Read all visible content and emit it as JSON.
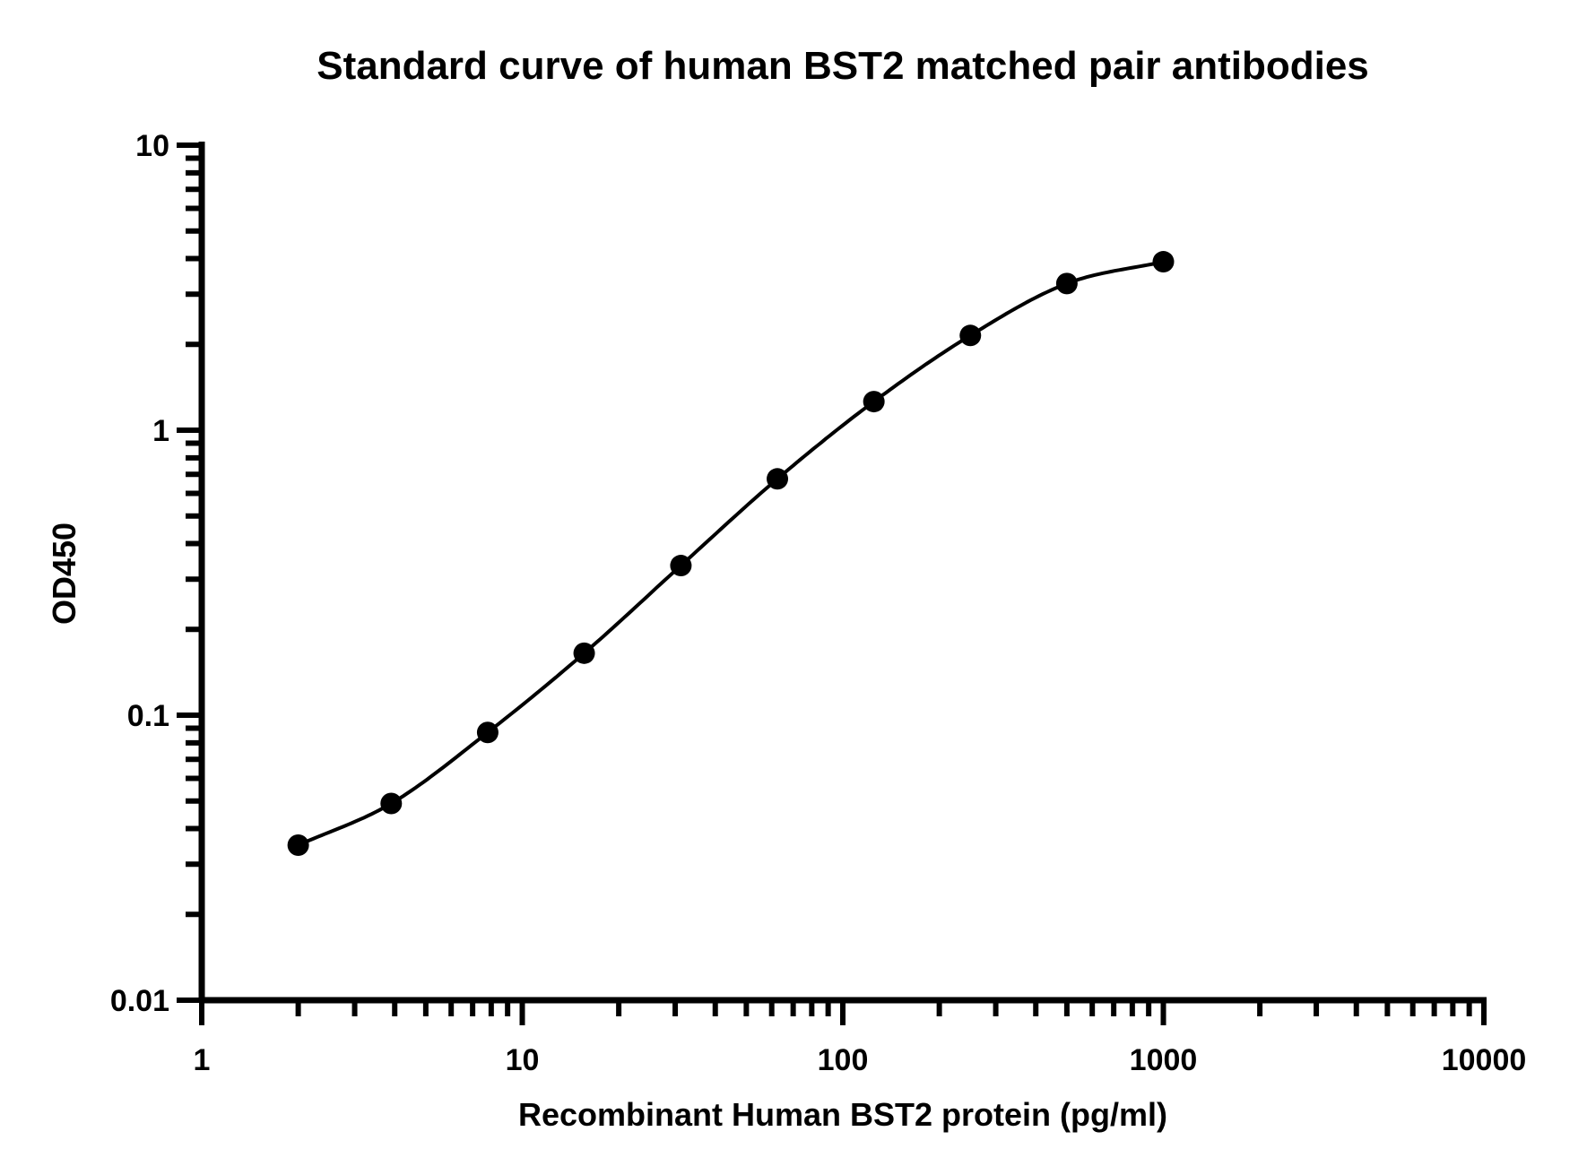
{
  "chart_data": {
    "type": "scatter",
    "title": "Standard curve of human BST2 matched pair antibodies",
    "xlabel": "Recombinant Human BST2 protein (pg/ml)",
    "ylabel": "OD450",
    "x_scale": "log",
    "y_scale": "log",
    "xlim": [
      1,
      10000
    ],
    "ylim": [
      0.01,
      10
    ],
    "x_ticks": [
      "1",
      "10",
      "100",
      "1000",
      "10000"
    ],
    "y_ticks": [
      "0.01",
      "0.1",
      "1",
      "10"
    ],
    "grid": false,
    "legend": "none",
    "series": [
      {
        "x": [
          2,
          3.9,
          7.8,
          15.6,
          31.25,
          62.5,
          125,
          250,
          500,
          1000
        ],
        "y": [
          0.035,
          0.049,
          0.087,
          0.165,
          0.335,
          0.675,
          1.26,
          2.15,
          3.27,
          3.9
        ],
        "fit_curve": true
      }
    ],
    "colors": {
      "marker": "#000000",
      "line": "#000000",
      "axis": "#000000"
    }
  }
}
